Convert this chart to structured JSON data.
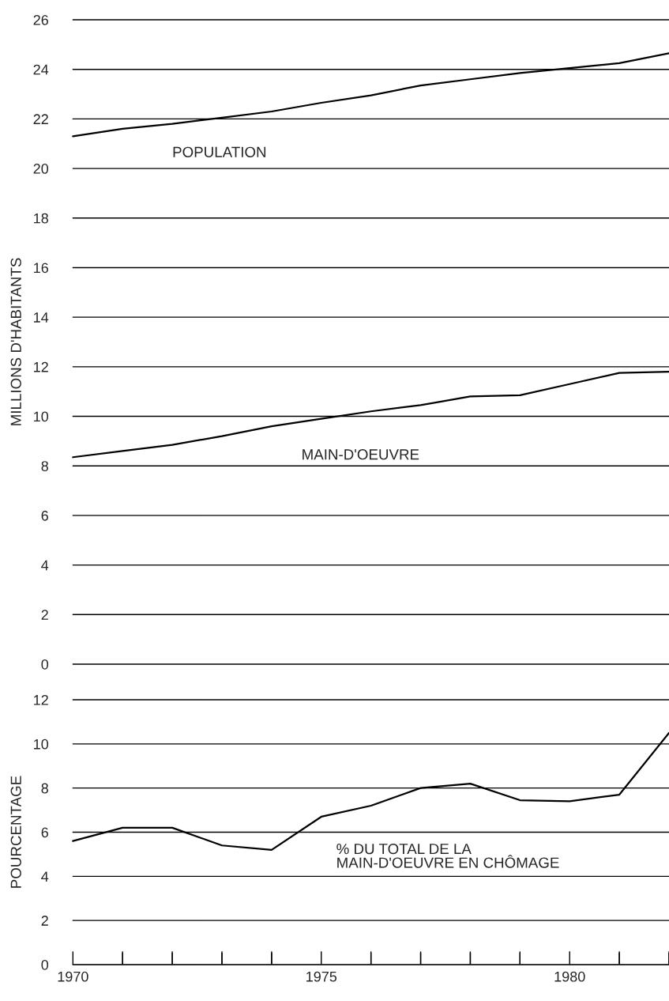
{
  "chart_data": [
    {
      "type": "line",
      "ylabel": "MILLIONS D'HABITANTS",
      "x": [
        1970,
        1971,
        1972,
        1973,
        1974,
        1975,
        1976,
        1977,
        1978,
        1979,
        1980,
        1981,
        1982
      ],
      "series": [
        {
          "name": "POPULATION",
          "color": "#000000",
          "values": [
            21.3,
            21.6,
            21.8,
            22.05,
            22.3,
            22.65,
            22.95,
            23.35,
            23.6,
            23.85,
            24.05,
            24.25,
            24.65
          ]
        },
        {
          "name": "MAIN-D'OEUVRE",
          "color": "#000000",
          "values": [
            8.35,
            8.6,
            8.85,
            9.2,
            9.6,
            9.9,
            10.2,
            10.45,
            10.8,
            10.85,
            11.3,
            11.75,
            11.8
          ]
        }
      ],
      "xlim": [
        1970,
        1982
      ],
      "ylim": [
        0,
        26
      ],
      "yticks": [
        0,
        2,
        4,
        6,
        8,
        10,
        12,
        14,
        16,
        18,
        20,
        22,
        24,
        26
      ],
      "grid": "y",
      "tick_labels": "y",
      "legend": false,
      "marker": "none",
      "line_style": "solid"
    },
    {
      "type": "line",
      "ylabel": "POURCENTAGE",
      "x": [
        1970,
        1971,
        1972,
        1973,
        1974,
        1975,
        1976,
        1977,
        1978,
        1979,
        1980,
        1981,
        1982
      ],
      "series": [
        {
          "name": "% DU TOTAL DE LA\nMAIN-D'OEUVRE EN CHÔMAGE",
          "color": "#000000",
          "values": [
            5.6,
            6.2,
            6.2,
            5.4,
            5.2,
            6.7,
            7.2,
            8.0,
            8.2,
            7.45,
            7.4,
            7.7,
            10.5
          ]
        }
      ],
      "xlim": [
        1970,
        1982
      ],
      "xticks": [
        1970,
        {
          "value": 1971,
          "label": null
        },
        {
          "value": 1972,
          "label": null
        },
        {
          "value": 1973,
          "label": null
        },
        {
          "value": 1974,
          "label": null
        },
        1975,
        {
          "value": 1976,
          "label": null
        },
        {
          "value": 1977,
          "label": null
        },
        {
          "value": 1978,
          "label": null
        },
        {
          "value": 1979,
          "label": null
        },
        1980,
        {
          "value": 1981,
          "label": null
        },
        {
          "value": 1982,
          "label": null
        }
      ],
      "ylim": [
        0,
        12
      ],
      "yticks": [
        0,
        2,
        4,
        6,
        8,
        10,
        12
      ],
      "grid": "y",
      "legend": false,
      "marker": "none",
      "line_style": "solid"
    }
  ]
}
